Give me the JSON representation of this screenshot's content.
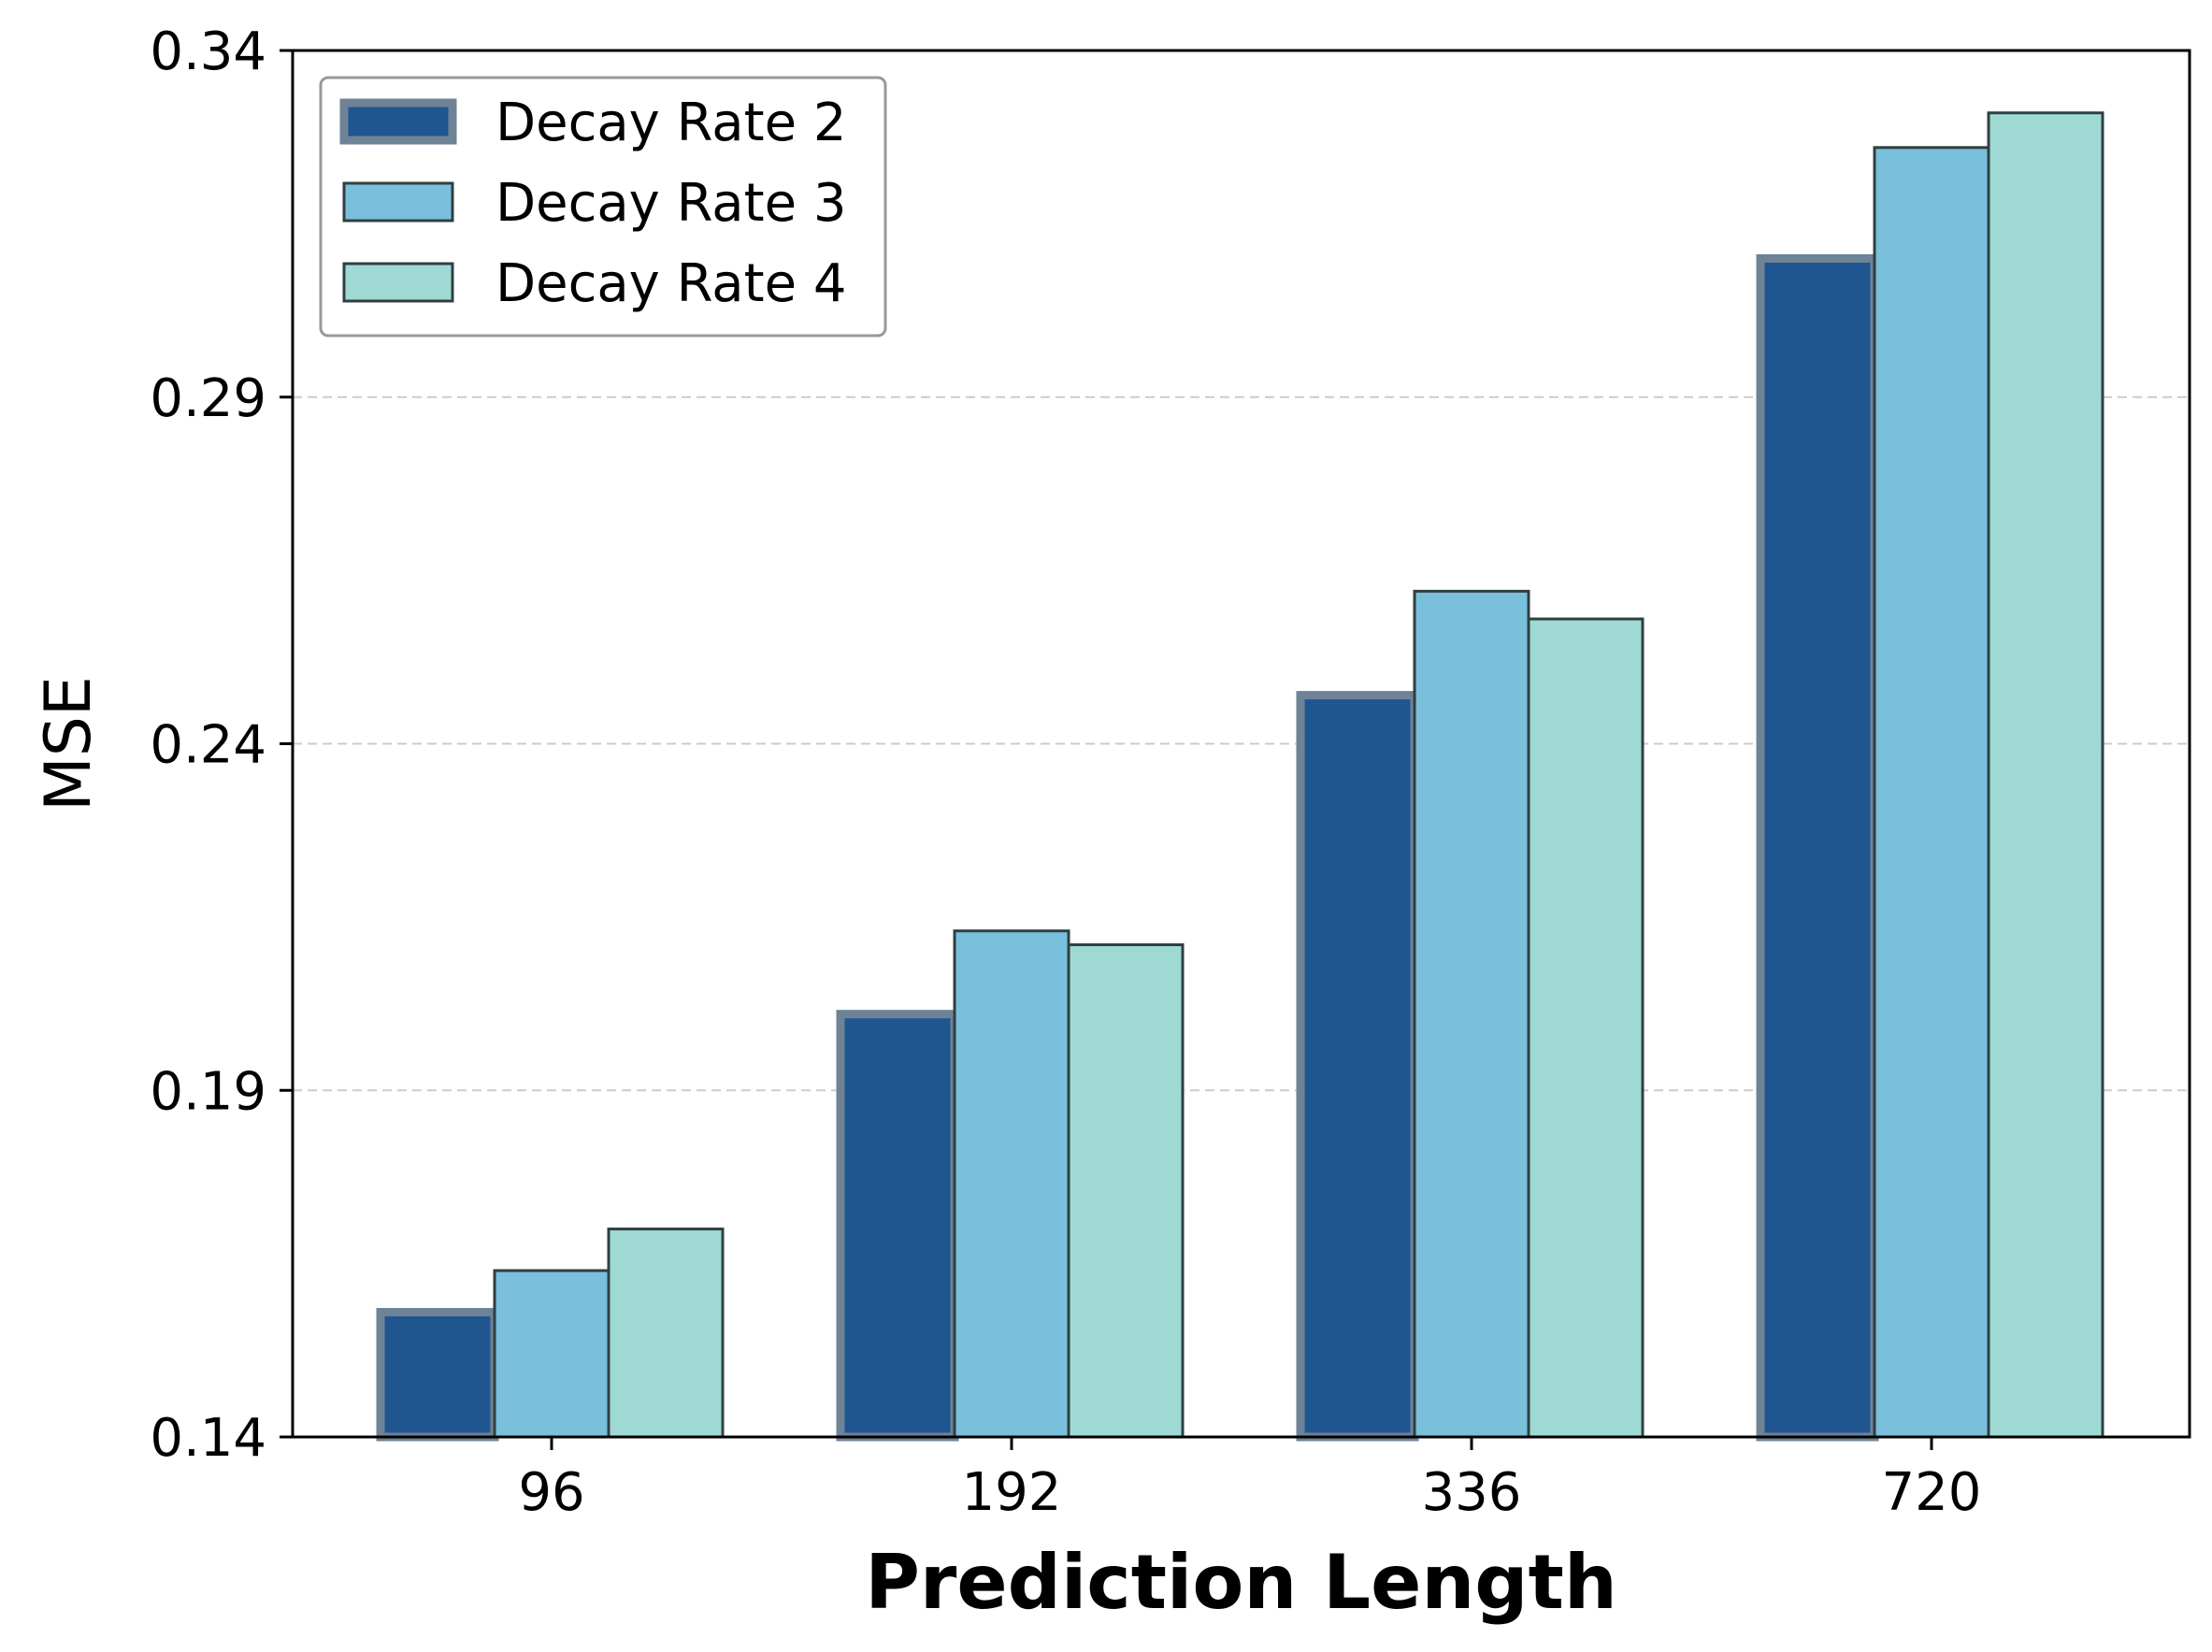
{
  "chart_data": {
    "type": "bar",
    "title": "",
    "xlabel": "Prediction Length",
    "ylabel": "MSE",
    "categories": [
      "96",
      "192",
      "336",
      "720"
    ],
    "series": [
      {
        "name": "Decay Rate 2",
        "values": [
          0.158,
          0.201,
          0.247,
          0.31
        ],
        "color": "#1f5690",
        "edgecolor": "#6f8397"
      },
      {
        "name": "Decay Rate 3",
        "values": [
          0.164,
          0.213,
          0.262,
          0.326
        ],
        "color": "#7abfdb",
        "edgecolor": "#2f3f40"
      },
      {
        "name": "Decay Rate 4",
        "values": [
          0.17,
          0.211,
          0.258,
          0.331
        ],
        "color": "#9fd9d4",
        "edgecolor": "#2f3f40"
      }
    ],
    "ylim": [
      0.14,
      0.34
    ],
    "yticks": [
      "0.14",
      "0.19",
      "0.24",
      "0.29",
      "0.34"
    ],
    "grid": "y-dashed",
    "legend": "top-left"
  }
}
